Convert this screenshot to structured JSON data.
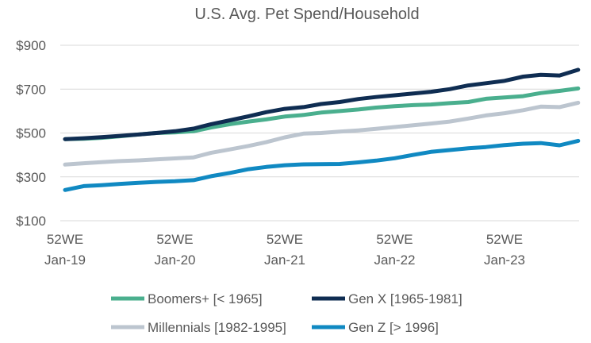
{
  "chart_data": {
    "type": "line",
    "title": "U.S. Avg. Pet Spend/Household",
    "xlabel": "",
    "ylabel": "",
    "ylim": [
      100,
      900
    ],
    "yticks": [
      "$100",
      "$300",
      "$500",
      "$700",
      "$900"
    ],
    "ytick_values": [
      100,
      300,
      500,
      700,
      900
    ],
    "x_categories": [
      [
        "52WE",
        "Jan-19"
      ],
      [
        "52WE",
        "Jan-20"
      ],
      [
        "52WE",
        "Jan-21"
      ],
      [
        "52WE",
        "Jan-22"
      ],
      [
        "52WE",
        "Jan-23"
      ]
    ],
    "x_points": [
      0,
      0.17,
      0.33,
      0.5,
      0.67,
      0.83,
      1,
      1.17,
      1.33,
      1.5,
      1.67,
      1.83,
      2,
      2.17,
      2.33,
      2.5,
      2.67,
      2.83,
      3,
      3.17,
      3.33,
      3.5,
      3.67,
      3.83,
      4,
      4.17,
      4.33,
      4.5,
      4.67
    ],
    "grid": true,
    "legend": "bottom",
    "series": [
      {
        "name": "Boomers+ [< 1965]",
        "color": "#4aaf8e",
        "values": [
          472,
          474,
          478,
          485,
          493,
          500,
          503,
          508,
          525,
          540,
          552,
          562,
          575,
          582,
          593,
          600,
          607,
          616,
          622,
          627,
          630,
          636,
          641,
          656,
          662,
          668,
          682,
          692,
          703
        ]
      },
      {
        "name": "Gen X [1965-1981]",
        "color": "#0f2d52",
        "values": [
          472,
          476,
          481,
          487,
          493,
          500,
          508,
          520,
          540,
          558,
          576,
          595,
          610,
          618,
          632,
          641,
          655,
          664,
          672,
          680,
          688,
          700,
          717,
          727,
          738,
          757,
          765,
          762,
          788
        ]
      },
      {
        "name": "Millennials [1982-1995]",
        "color": "#bcc5cf",
        "values": [
          356,
          362,
          367,
          372,
          375,
          380,
          384,
          389,
          410,
          425,
          441,
          458,
          480,
          497,
          500,
          506,
          512,
          519,
          527,
          535,
          543,
          552,
          566,
          580,
          590,
          604,
          620,
          618,
          638
        ]
      },
      {
        "name": "Gen Z [> 1996]",
        "color": "#1089c2",
        "values": [
          240,
          258,
          262,
          268,
          273,
          277,
          280,
          285,
          303,
          318,
          335,
          345,
          353,
          357,
          358,
          359,
          366,
          374,
          385,
          400,
          414,
          422,
          430,
          436,
          445,
          451,
          454,
          444,
          464
        ]
      }
    ]
  }
}
